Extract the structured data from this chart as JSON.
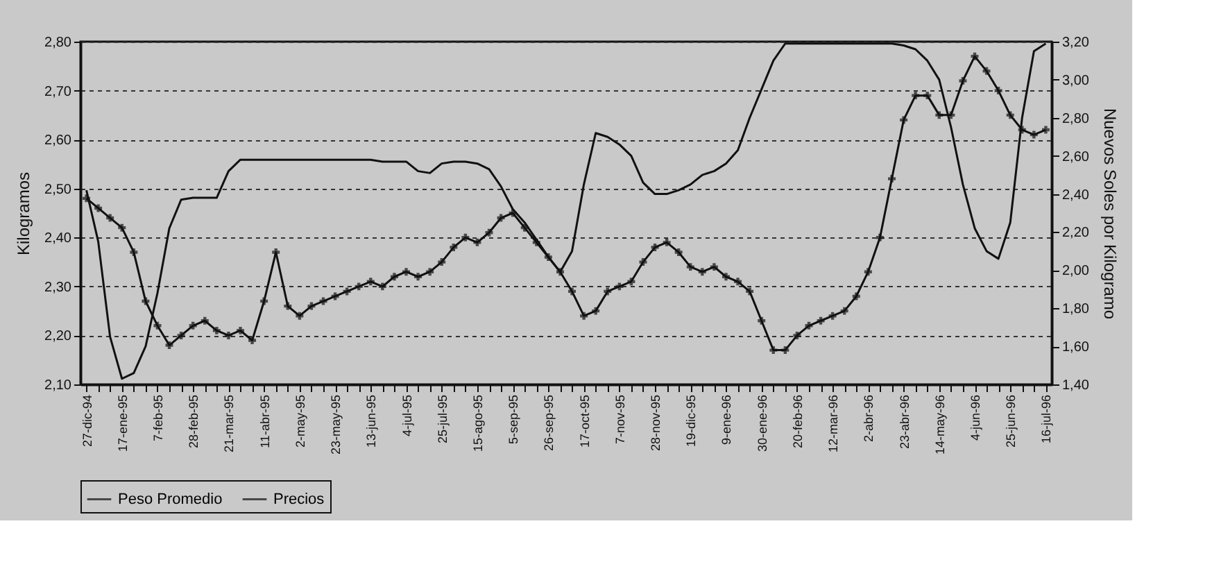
{
  "chart_data": {
    "type": "line",
    "categories": [
      "27-dic-94",
      null,
      null,
      "17-ene-95",
      null,
      null,
      "7-feb-95",
      null,
      null,
      "28-feb-95",
      null,
      null,
      "21-mar-95",
      null,
      null,
      "11-abr-95",
      null,
      null,
      "2-may-95",
      null,
      null,
      "23-may-95",
      null,
      null,
      "13-jun-95",
      null,
      null,
      "4-jul-95",
      null,
      null,
      "25-jul-95",
      null,
      null,
      "15-ago-95",
      null,
      null,
      "5-sep-95",
      null,
      null,
      "26-sep-95",
      null,
      null,
      "17-oct-95",
      null,
      null,
      "7-nov-95",
      null,
      null,
      "28-nov-95",
      null,
      null,
      "19-dic-95",
      null,
      null,
      "9-ene-96",
      null,
      null,
      "30-ene-96",
      null,
      null,
      "20-feb-96",
      null,
      null,
      "12-mar-96",
      null,
      null,
      "2-abr-96",
      null,
      null,
      "23-abr-96",
      null,
      null,
      "14-may-96",
      null,
      null,
      "4-jun-96",
      null,
      null,
      "25-jun-96",
      null,
      null,
      "16-jul-96"
    ],
    "series": [
      {
        "name": "Peso Promedio",
        "color": "#111111",
        "marker": "cross",
        "values": [
          2.48,
          2.46,
          2.44,
          2.42,
          2.37,
          2.27,
          2.22,
          2.18,
          2.2,
          2.22,
          2.23,
          2.21,
          2.2,
          2.21,
          2.19,
          2.27,
          2.37,
          2.26,
          2.24,
          2.26,
          2.27,
          2.28,
          2.29,
          2.3,
          2.31,
          2.3,
          2.32,
          2.33,
          2.32,
          2.33,
          2.35,
          2.38,
          2.4,
          2.39,
          2.41,
          2.44,
          2.45,
          2.42,
          2.39,
          2.36,
          2.33,
          2.29,
          2.24,
          2.25,
          2.29,
          2.3,
          2.31,
          2.35,
          2.38,
          2.39,
          2.37,
          2.34,
          2.33,
          2.34,
          2.32,
          2.31,
          2.29,
          2.23,
          2.17,
          2.17,
          2.2,
          2.22,
          2.23,
          2.24,
          2.25,
          2.28,
          2.33,
          2.4,
          2.52,
          2.64,
          2.69,
          2.69,
          2.65,
          2.65,
          2.72,
          2.77,
          2.74,
          2.7,
          2.65,
          2.62,
          2.61,
          2.62
        ]
      },
      {
        "name": "Precios",
        "color": "#111111",
        "marker": "none",
        "axis": "y2",
        "values": [
          2.42,
          2.15,
          1.65,
          1.43,
          1.46,
          1.6,
          1.88,
          2.22,
          2.37,
          2.38,
          2.38,
          2.38,
          2.52,
          2.58,
          2.58,
          2.58,
          2.58,
          2.58,
          2.58,
          2.58,
          2.58,
          2.58,
          2.58,
          2.58,
          2.58,
          2.57,
          2.57,
          2.57,
          2.52,
          2.51,
          2.56,
          2.57,
          2.57,
          2.56,
          2.53,
          2.44,
          2.32,
          2.25,
          2.16,
          2.07,
          1.99,
          2.1,
          2.45,
          2.72,
          2.7,
          2.66,
          2.6,
          2.46,
          2.4,
          2.4,
          2.42,
          2.45,
          2.5,
          2.52,
          2.56,
          2.63,
          2.8,
          2.95,
          3.1,
          3.19,
          3.19,
          3.19,
          3.19,
          3.19,
          3.19,
          3.19,
          3.19,
          3.19,
          3.19,
          3.18,
          3.16,
          3.1,
          3.0,
          2.75,
          2.45,
          2.22,
          2.1,
          2.06,
          2.25,
          2.8,
          3.15,
          3.19
        ]
      }
    ],
    "ylabel": "Kilogramos",
    "y2label": "Nuevos Soles por Kilogramo",
    "ylim": [
      2.1,
      2.8
    ],
    "yticks": [
      {
        "value": 2.1,
        "label": "2,10"
      },
      {
        "value": 2.2,
        "label": "2,20"
      },
      {
        "value": 2.3,
        "label": "2,30"
      },
      {
        "value": 2.4,
        "label": "2,40"
      },
      {
        "value": 2.5,
        "label": "2,50"
      },
      {
        "value": 2.6,
        "label": "2,60"
      },
      {
        "value": 2.7,
        "label": "2,70"
      },
      {
        "value": 2.8,
        "label": "2,80"
      }
    ],
    "y2lim": [
      1.4,
      3.2
    ],
    "y2ticks": [
      {
        "value": 1.4,
        "label": "1,40"
      },
      {
        "value": 1.6,
        "label": "1,60"
      },
      {
        "value": 1.8,
        "label": "1,80"
      },
      {
        "value": 2.0,
        "label": "2,00"
      },
      {
        "value": 2.2,
        "label": "2,20"
      },
      {
        "value": 2.4,
        "label": "2,40"
      },
      {
        "value": 2.6,
        "label": "2,60"
      },
      {
        "value": 2.8,
        "label": "2,80"
      },
      {
        "value": 3.0,
        "label": "3,00"
      },
      {
        "value": 3.2,
        "label": "3,20"
      }
    ],
    "grid": "y",
    "legend": "bottom",
    "line_style": "solid"
  }
}
